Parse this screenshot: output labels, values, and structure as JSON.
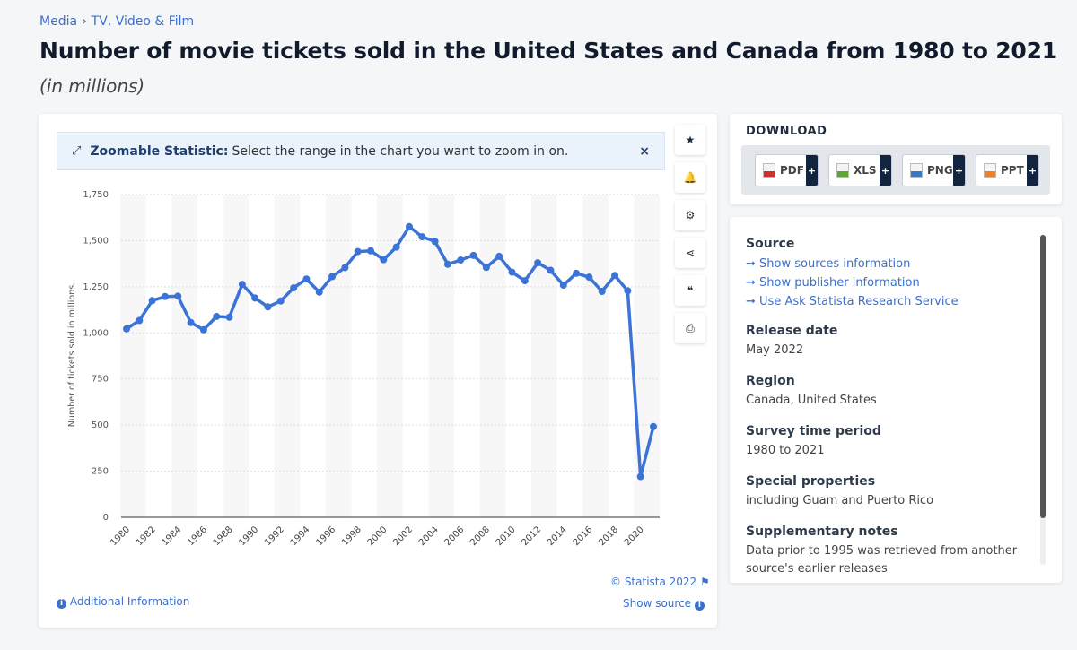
{
  "breadcrumb": [
    "Media",
    "TV, Video & Film"
  ],
  "title": "Number of movie tickets sold in the United States and Canada from 1980 to 2021",
  "subtitle": "(in millions)",
  "zoom_banner": {
    "label": "Zoomable Statistic:",
    "text": "Select the range in the chart you want to zoom in on.",
    "close": "×"
  },
  "tools": [
    {
      "icon": "star-icon",
      "glyph": "★"
    },
    {
      "icon": "bell-icon",
      "glyph": "🔔"
    },
    {
      "icon": "gear-icon",
      "glyph": "⚙"
    },
    {
      "icon": "share-icon",
      "glyph": "⋖"
    },
    {
      "icon": "quote-icon",
      "glyph": "❝"
    },
    {
      "icon": "print-icon",
      "glyph": "⎙"
    }
  ],
  "footer": {
    "additional": "Additional Information",
    "copyright": "© Statista 2022",
    "show_source": "Show source"
  },
  "download": {
    "title": "DOWNLOAD",
    "buttons": [
      {
        "label": "PDF",
        "color": "#d0312d"
      },
      {
        "label": "XLS",
        "color": "#5aa832"
      },
      {
        "label": "PNG",
        "color": "#3a78c2"
      },
      {
        "label": "PPT",
        "color": "#e9812b"
      }
    ],
    "plus": "+"
  },
  "meta": {
    "source_title": "Source",
    "links": [
      "Show sources information",
      "Show publisher information",
      "Use Ask Statista Research Service"
    ],
    "fields": [
      {
        "label": "Release date",
        "value": "May 2022"
      },
      {
        "label": "Region",
        "value": "Canada, United States"
      },
      {
        "label": "Survey time period",
        "value": "1980 to 2021"
      },
      {
        "label": "Special properties",
        "value": "including Guam and Puerto Rico"
      },
      {
        "label": "Supplementary notes",
        "value": "Data prior to 1995 was retrieved from another source's earlier releases"
      }
    ]
  },
  "chart_data": {
    "type": "line",
    "title": "Number of movie tickets sold in the United States and Canada from 1980 to 2021",
    "xlabel": "",
    "ylabel": "Number of tickets sold in millions",
    "ylim": [
      0,
      1750
    ],
    "yticks": [
      0,
      250,
      500,
      750,
      "1,000",
      "1,250",
      "1,500",
      "1,750"
    ],
    "ytick_values": [
      0,
      250,
      500,
      750,
      1000,
      1250,
      1500,
      1750
    ],
    "grid": true,
    "color": "#3b73d6",
    "x": [
      1980,
      1981,
      1982,
      1983,
      1984,
      1985,
      1986,
      1987,
      1988,
      1989,
      1990,
      1991,
      1992,
      1993,
      1994,
      1995,
      1996,
      1997,
      1998,
      1999,
      2000,
      2001,
      2002,
      2003,
      2004,
      2005,
      2006,
      2007,
      2008,
      2009,
      2010,
      2011,
      2012,
      2013,
      2014,
      2015,
      2016,
      2017,
      2018,
      2019,
      2020,
      2021
    ],
    "values": [
      1022,
      1067,
      1175,
      1197,
      1199,
      1056,
      1017,
      1089,
      1085,
      1263,
      1189,
      1141,
      1173,
      1244,
      1292,
      1221,
      1305,
      1354,
      1441,
      1445,
      1397,
      1465,
      1576,
      1521,
      1496,
      1372,
      1395,
      1420,
      1355,
      1415,
      1329,
      1283,
      1380,
      1339,
      1259,
      1323,
      1302,
      1225,
      1311,
      1228,
      221,
      492
    ]
  }
}
